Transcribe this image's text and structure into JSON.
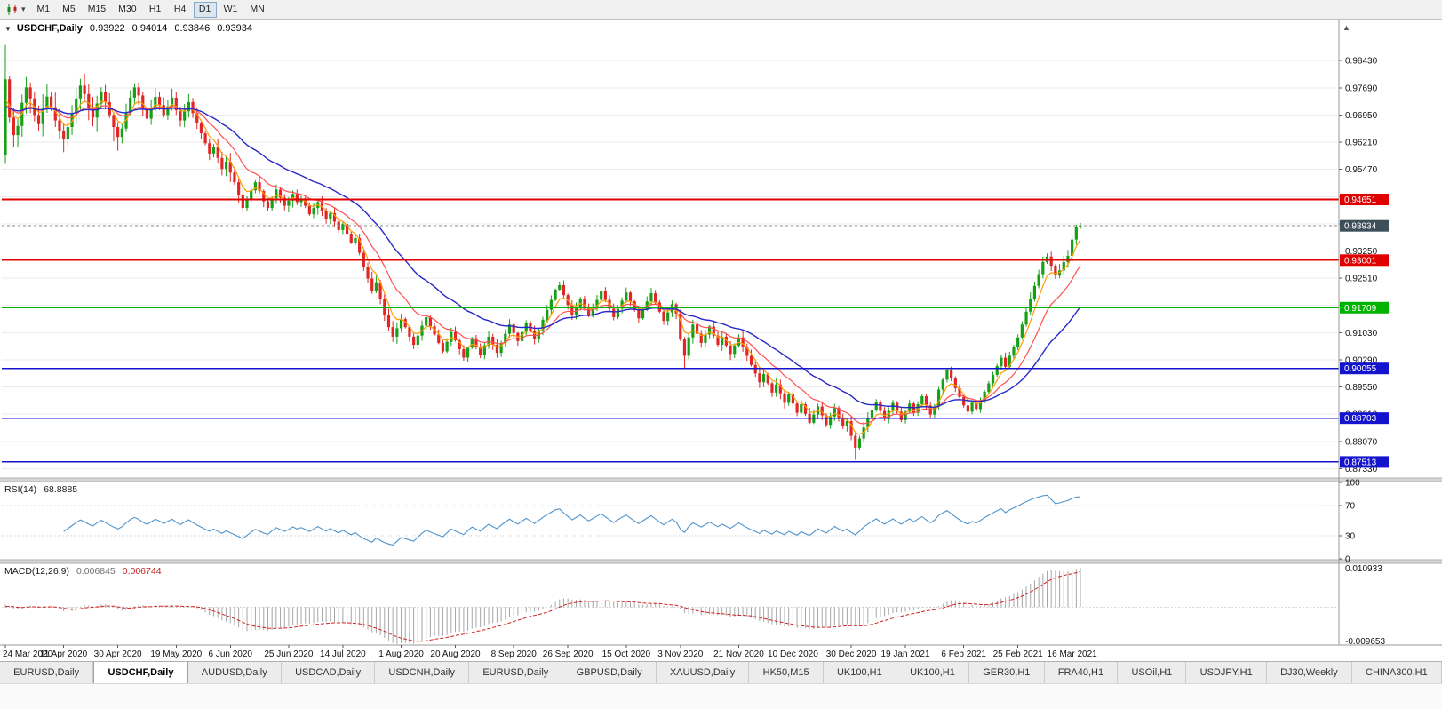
{
  "icons": {
    "collapse": "▼",
    "dropdown_caret": "▾",
    "scroll_up": "▲"
  },
  "toolbar": {
    "timeframes": [
      "M1",
      "M5",
      "M15",
      "M30",
      "H1",
      "H4",
      "D1",
      "W1",
      "MN"
    ],
    "active_timeframe": "D1"
  },
  "chart": {
    "symbol_period": "USDCHF,Daily",
    "open": "0.93922",
    "high": "0.94014",
    "low": "0.93846",
    "close": "0.93934"
  },
  "tabs": [
    {
      "label": "EURUSD,Daily",
      "active": false
    },
    {
      "label": "USDCHF,Daily",
      "active": true
    },
    {
      "label": "AUDUSD,Daily",
      "active": false
    },
    {
      "label": "USDCAD,Daily",
      "active": false
    },
    {
      "label": "USDCNH,Daily",
      "active": false
    },
    {
      "label": "EURUSD,Daily",
      "active": false
    },
    {
      "label": "GBPUSD,Daily",
      "active": false
    },
    {
      "label": "XAUUSD,Daily",
      "active": false
    },
    {
      "label": "HK50,M15",
      "active": false
    },
    {
      "label": "UK100,H1",
      "active": false
    },
    {
      "label": "UK100,H1",
      "active": false
    },
    {
      "label": "GER30,H1",
      "active": false
    },
    {
      "label": "FRA40,H1",
      "active": false
    },
    {
      "label": "USOil,H1",
      "active": false
    },
    {
      "label": "USDJPY,H1",
      "active": false
    },
    {
      "label": "DJ30,Weekly",
      "active": false
    },
    {
      "label": "CHINA300,H1",
      "active": false
    }
  ],
  "chart_data": {
    "type": "candlestick",
    "symbol": "USDCHF",
    "timeframe": "Daily",
    "ylim": [
      0.871,
      0.994
    ],
    "colors": {
      "up": "#16a016",
      "down": "#e02626",
      "ma": [
        "#ff9d00",
        "#ff5050",
        "#2828c8"
      ],
      "grid": "#ebebeb"
    },
    "price_axis_labels": [
      "0.98430",
      "0.97690",
      "0.96950",
      "0.96210",
      "0.95470",
      "0.94730",
      "0.93990",
      "0.93250",
      "0.92510",
      "0.91770",
      "0.91030",
      "0.90290",
      "0.89550",
      "0.88810",
      "0.88070",
      "0.87330"
    ],
    "horizontal_levels": [
      {
        "label": "0.94651",
        "price": 0.94651,
        "color": "#e00000"
      },
      {
        "label": "0.93001",
        "price": 0.93001,
        "color": "#e00000"
      },
      {
        "label": "0.91709",
        "price": 0.91709,
        "color": "#00b300"
      },
      {
        "label": "0.90055",
        "price": 0.90055,
        "color": "#1414cc"
      },
      {
        "label": "0.88703",
        "price": 0.88703,
        "color": "#1414cc"
      },
      {
        "label": "0.87513",
        "price": 0.87513,
        "color": "#1414cc"
      }
    ],
    "current_price": {
      "label": "0.93934",
      "price": 0.93934,
      "box_color": "#3f4f5a"
    },
    "date_labels": [
      {
        "label": "24 Mar 2020",
        "index": 0
      },
      {
        "label": "11 Apr 2020",
        "index": 14
      },
      {
        "label": "30 Apr 2020",
        "index": 27
      },
      {
        "label": "19 May 2020",
        "index": 41
      },
      {
        "label": "6 Jun 2020",
        "index": 54
      },
      {
        "label": "25 Jun 2020",
        "index": 68
      },
      {
        "label": "14 Jul 2020",
        "index": 81
      },
      {
        "label": "1 Aug 2020",
        "index": 95
      },
      {
        "label": "20 Aug 2020",
        "index": 108
      },
      {
        "label": "8 Sep 2020",
        "index": 122
      },
      {
        "label": "26 Sep 2020",
        "index": 135
      },
      {
        "label": "15 Oct 2020",
        "index": 149
      },
      {
        "label": "3 Nov 2020",
        "index": 162
      },
      {
        "label": "21 Nov 2020",
        "index": 176
      },
      {
        "label": "10 Dec 2020",
        "index": 189
      },
      {
        "label": "30 Dec 2020",
        "index": 203
      },
      {
        "label": "19 Jan 2021",
        "index": 216
      },
      {
        "label": "6 Feb 2021",
        "index": 230
      },
      {
        "label": "25 Feb 2021",
        "index": 243
      },
      {
        "label": "16 Mar 2021",
        "index": 256
      }
    ],
    "closes": [
      0.9792,
      0.9688,
      0.964,
      0.9665,
      0.9728,
      0.977,
      0.974,
      0.9695,
      0.967,
      0.9712,
      0.9745,
      0.9716,
      0.968,
      0.9652,
      0.963,
      0.9662,
      0.97,
      0.974,
      0.9775,
      0.9752,
      0.9715,
      0.9688,
      0.9726,
      0.9758,
      0.973,
      0.9695,
      0.9662,
      0.9635,
      0.9658,
      0.97,
      0.9742,
      0.977,
      0.9748,
      0.9712,
      0.9685,
      0.9712,
      0.9744,
      0.9722,
      0.9695,
      0.9718,
      0.9742,
      0.9708,
      0.968,
      0.9705,
      0.973,
      0.97,
      0.9672,
      0.9645,
      0.9618,
      0.959,
      0.9608,
      0.9578,
      0.9548,
      0.9568,
      0.9538,
      0.9512,
      0.9478,
      0.9442,
      0.9465,
      0.949,
      0.9512,
      0.9488,
      0.946,
      0.9442,
      0.9468,
      0.9492,
      0.947,
      0.9448,
      0.9462,
      0.948,
      0.9458,
      0.9468,
      0.9448,
      0.9425,
      0.9442,
      0.9458,
      0.9435,
      0.9412,
      0.9428,
      0.9405,
      0.9382,
      0.9398,
      0.9372,
      0.9348,
      0.936,
      0.932,
      0.9282,
      0.925,
      0.9215,
      0.924,
      0.9195,
      0.9152,
      0.9118,
      0.9092,
      0.9115,
      0.914,
      0.9118,
      0.9092,
      0.907,
      0.9095,
      0.9122,
      0.9145,
      0.912,
      0.9098,
      0.9075,
      0.9052,
      0.9078,
      0.9105,
      0.9082,
      0.9058,
      0.9035,
      0.9062,
      0.9088,
      0.9065,
      0.9042,
      0.9068,
      0.9092,
      0.907,
      0.9048,
      0.9075,
      0.91,
      0.9125,
      0.9102,
      0.908,
      0.9105,
      0.913,
      0.9108,
      0.9085,
      0.911,
      0.9138,
      0.9165,
      0.9192,
      0.922,
      0.9232,
      0.9205,
      0.9178,
      0.915,
      0.9172,
      0.9195,
      0.917,
      0.9148,
      0.917,
      0.9192,
      0.9215,
      0.9192,
      0.9168,
      0.9145,
      0.9168,
      0.919,
      0.9212,
      0.9188,
      0.9165,
      0.9142,
      0.9165,
      0.9188,
      0.921,
      0.9185,
      0.916,
      0.9135,
      0.9158,
      0.918,
      0.9155,
      0.9085,
      0.904,
      0.909,
      0.9125,
      0.91,
      0.9075,
      0.9098,
      0.912,
      0.9095,
      0.907,
      0.9092,
      0.9068,
      0.9045,
      0.9068,
      0.909,
      0.9065,
      0.904,
      0.9015,
      0.8992,
      0.8968,
      0.899,
      0.8965,
      0.894,
      0.8962,
      0.8938,
      0.8912,
      0.8935,
      0.891,
      0.8885,
      0.8908,
      0.8882,
      0.8858,
      0.888,
      0.8902,
      0.8878,
      0.8852,
      0.8875,
      0.8898,
      0.8872,
      0.8848,
      0.8862,
      0.8822,
      0.879,
      0.8815,
      0.8845,
      0.887,
      0.8892,
      0.8915,
      0.889,
      0.8868,
      0.889,
      0.8912,
      0.8888,
      0.8865,
      0.8888,
      0.891,
      0.8885,
      0.8908,
      0.893,
      0.8905,
      0.888,
      0.8902,
      0.8948,
      0.8975,
      0.9,
      0.8978,
      0.8952,
      0.8928,
      0.8905,
      0.8888,
      0.8912,
      0.8895,
      0.8918,
      0.8942,
      0.8965,
      0.8988,
      0.9012,
      0.9035,
      0.901,
      0.904,
      0.9065,
      0.909,
      0.9125,
      0.916,
      0.9195,
      0.923,
      0.9262,
      0.9295,
      0.931,
      0.9285,
      0.9258,
      0.9272,
      0.9295,
      0.9312,
      0.9356,
      0.939,
      0.93934
    ],
    "last_candle": {
      "open": 0.93922,
      "high": 0.94014,
      "low": 0.93846,
      "close": 0.93934
    },
    "lowest_wick": {
      "index": 204,
      "price": 0.8757
    },
    "rsi": {
      "title": "RSI(14)",
      "value": "68.8885",
      "period": 14,
      "axis_labels": [
        "100",
        "70",
        "30",
        "0"
      ],
      "axis_values": [
        100,
        70,
        30,
        0
      ],
      "line_color": "#4f94cd",
      "level_lines": [
        70,
        30
      ]
    },
    "macd": {
      "title": "MACD(12,26,9)",
      "main_value": "0.006845",
      "signal_value": "0.006744",
      "params": [
        12,
        26,
        9
      ],
      "axis_max_label": "0.010933",
      "axis_min_label": "-0.009653",
      "axis_max": 0.010933,
      "axis_min": -0.009653,
      "histogram_color": "#a6a6a6",
      "signal_color": "#d02020"
    }
  }
}
